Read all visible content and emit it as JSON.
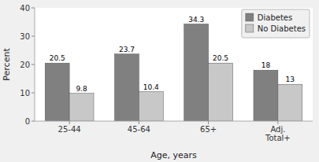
{
  "chart_data": {
    "type": "bar",
    "categories": [
      "25-44",
      "45-64",
      "65+",
      "Adj.\nTotal+"
    ],
    "series": [
      {
        "name": "Diabetes",
        "color": "#808080",
        "values": [
          20.5,
          23.7,
          34.3,
          18
        ]
      },
      {
        "name": "No Diabetes",
        "color": "#c8c8c8",
        "values": [
          9.8,
          10.4,
          20.5,
          13
        ]
      }
    ],
    "x_label": "Age, years",
    "y_label": "Percent",
    "ylim": [
      0,
      40
    ],
    "yticks": [
      0,
      10,
      20,
      30,
      40
    ],
    "grid": false,
    "legend": "upper right",
    "data_labels": true
  }
}
